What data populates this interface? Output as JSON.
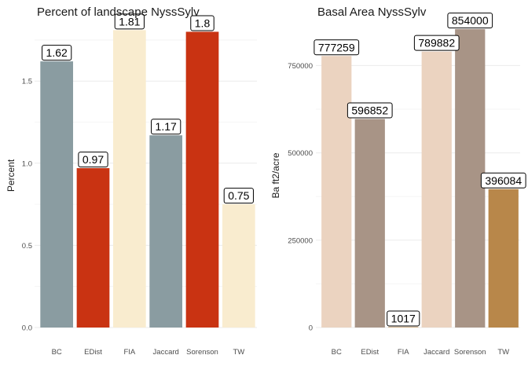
{
  "chart_data": [
    {
      "type": "bar",
      "title": "Percent of landscape  NyssSylv",
      "xlabel": "",
      "ylabel": "Percent",
      "ylim": [
        0,
        1.85
      ],
      "yticks": [
        0.0,
        0.5,
        1.0,
        1.5
      ],
      "ytick_labels": [
        "0.0",
        "0.5",
        "1.0",
        "1.5"
      ],
      "grid": true,
      "legend": "none",
      "categories": [
        "BC",
        "EDist",
        "FIA",
        "Jaccard",
        "Sorenson",
        "TW"
      ],
      "values": [
        1.62,
        0.97,
        1.81,
        1.17,
        1.8,
        0.75
      ],
      "value_labels": [
        "1.62",
        "0.97",
        "1.81",
        "1.17",
        "1.8",
        "0.75"
      ],
      "colors": [
        "#8a9ca1",
        "#c93312",
        "#f9eccf",
        "#8a9ca1",
        "#c93312",
        "#f9eccf"
      ]
    },
    {
      "type": "bar",
      "title": "Basal Area  NyssSylv",
      "xlabel": "",
      "ylabel": "Ba ft2/acre",
      "ylim": [
        0,
        870000
      ],
      "yticks": [
        0,
        250000,
        500000,
        750000
      ],
      "ytick_labels": [
        "0",
        "250000",
        "500000",
        "750000"
      ],
      "grid": true,
      "legend": "none",
      "categories": [
        "BC",
        "EDist",
        "FIA",
        "Jaccard",
        "Sorenson",
        "TW"
      ],
      "values": [
        777259,
        596852,
        1017,
        789882,
        854000,
        396084
      ],
      "value_labels": [
        "777259",
        "596852",
        "1017",
        "789882",
        "854000",
        "396084"
      ],
      "colors": [
        "#ebd3c0",
        "#a89486",
        "#c9a06a",
        "#ebd3c0",
        "#a89486",
        "#b8874a"
      ]
    }
  ]
}
